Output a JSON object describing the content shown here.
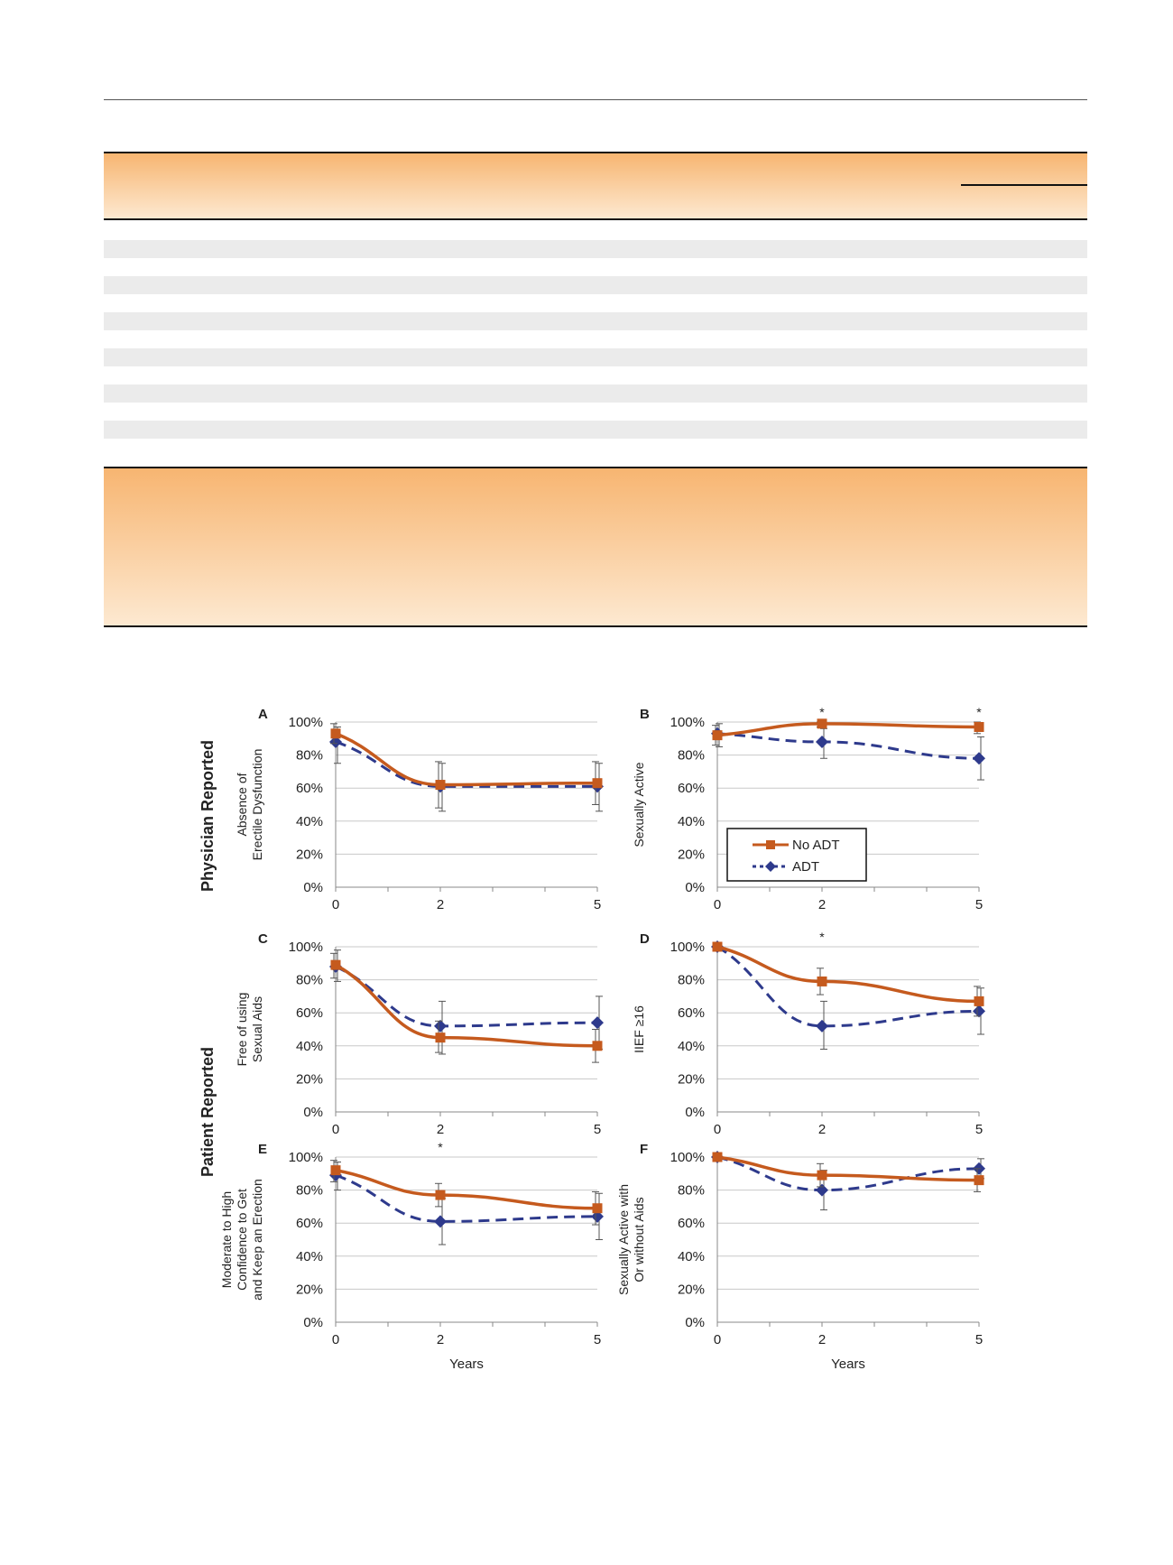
{
  "figure": {
    "row_labels": [
      "Physician Reported",
      "Patient Reported"
    ],
    "x_label": "Years",
    "legend": [
      {
        "name": "No ADT",
        "color": "#c55a1e",
        "style": "solid",
        "marker": "square"
      },
      {
        "name": "ADT",
        "color": "#2e3a8c",
        "style": "dashed",
        "marker": "diamond"
      }
    ]
  },
  "chart_data": [
    {
      "panel": "A",
      "type": "line",
      "ylabel": [
        "Absence of",
        "Erectile Dysfunction"
      ],
      "x": [
        0,
        2,
        5
      ],
      "xlim": [
        0,
        5
      ],
      "ylim": [
        0,
        100
      ],
      "y_ticks": [
        "0%",
        "20%",
        "40%",
        "60%",
        "80%",
        "100%"
      ],
      "x_ticks": [
        "0",
        "2",
        "5"
      ],
      "series": [
        {
          "name": "No ADT",
          "values": [
            93,
            62,
            63
          ],
          "err_low": [
            87,
            48,
            50
          ],
          "err_high": [
            99,
            76,
            76
          ]
        },
        {
          "name": "ADT",
          "values": [
            88,
            61,
            61
          ],
          "err_low": [
            75,
            46,
            46
          ],
          "err_high": [
            97,
            75,
            75
          ]
        }
      ],
      "stars": []
    },
    {
      "panel": "B",
      "type": "line",
      "ylabel": [
        "Sexually Active"
      ],
      "x": [
        0,
        2,
        5
      ],
      "xlim": [
        0,
        5
      ],
      "ylim": [
        0,
        100
      ],
      "y_ticks": [
        "0%",
        "20%",
        "40%",
        "60%",
        "80%",
        "100%"
      ],
      "x_ticks": [
        "0",
        "2",
        "5"
      ],
      "series": [
        {
          "name": "No ADT",
          "values": [
            92,
            99,
            97
          ],
          "err_low": [
            86,
            97,
            93
          ],
          "err_high": [
            98,
            100,
            100
          ]
        },
        {
          "name": "ADT",
          "values": [
            93,
            88,
            78
          ],
          "err_low": [
            85,
            78,
            65
          ],
          "err_high": [
            99,
            96,
            91
          ]
        }
      ],
      "stars": [
        2,
        5
      ],
      "legend": true
    },
    {
      "panel": "C",
      "type": "line",
      "ylabel": [
        "Free of using",
        "Sexual Aids"
      ],
      "x": [
        0,
        2,
        5
      ],
      "xlim": [
        0,
        5
      ],
      "ylim": [
        0,
        100
      ],
      "y_ticks": [
        "0%",
        "20%",
        "40%",
        "60%",
        "80%",
        "100%"
      ],
      "x_ticks": [
        "0",
        "2",
        "5"
      ],
      "series": [
        {
          "name": "No ADT",
          "values": [
            89,
            45,
            40
          ],
          "err_low": [
            81,
            36,
            30
          ],
          "err_high": [
            96,
            55,
            50
          ]
        },
        {
          "name": "ADT",
          "values": [
            88,
            52,
            54
          ],
          "err_low": [
            79,
            35,
            38
          ],
          "err_high": [
            98,
            67,
            70
          ]
        }
      ],
      "stars": []
    },
    {
      "panel": "D",
      "type": "line",
      "ylabel": [
        "IIEF ≥16"
      ],
      "x": [
        0,
        2,
        5
      ],
      "xlim": [
        0,
        5
      ],
      "ylim": [
        0,
        100
      ],
      "y_ticks": [
        "0%",
        "20%",
        "40%",
        "60%",
        "80%",
        "100%"
      ],
      "x_ticks": [
        "0",
        "2",
        "5"
      ],
      "series": [
        {
          "name": "No ADT",
          "values": [
            100,
            79,
            67
          ],
          "err_low": [
            100,
            71,
            58
          ],
          "err_high": [
            100,
            87,
            76
          ]
        },
        {
          "name": "ADT",
          "values": [
            100,
            52,
            61
          ],
          "err_low": [
            100,
            38,
            47
          ],
          "err_high": [
            100,
            67,
            75
          ]
        }
      ],
      "stars": [
        2
      ]
    },
    {
      "panel": "E",
      "type": "line",
      "ylabel": [
        "Moderate to High",
        "Confidence to Get",
        "and Keep an Erection"
      ],
      "x": [
        0,
        2,
        5
      ],
      "xlim": [
        0,
        5
      ],
      "ylim": [
        0,
        100
      ],
      "y_ticks": [
        "0%",
        "20%",
        "40%",
        "60%",
        "80%",
        "100%"
      ],
      "x_ticks": [
        "0",
        "2",
        "5"
      ],
      "series": [
        {
          "name": "No ADT",
          "values": [
            92,
            77,
            69
          ],
          "err_low": [
            85,
            70,
            59
          ],
          "err_high": [
            98,
            84,
            79
          ]
        },
        {
          "name": "ADT",
          "values": [
            89,
            61,
            64
          ],
          "err_low": [
            80,
            47,
            50
          ],
          "err_high": [
            97,
            75,
            78
          ]
        }
      ],
      "stars": [
        2
      ],
      "xlabel": "Years"
    },
    {
      "panel": "F",
      "type": "line",
      "ylabel": [
        "Sexually Active with",
        "Or without Aids"
      ],
      "x": [
        0,
        2,
        5
      ],
      "xlim": [
        0,
        5
      ],
      "ylim": [
        0,
        100
      ],
      "y_ticks": [
        "0%",
        "20%",
        "40%",
        "60%",
        "80%",
        "100%"
      ],
      "x_ticks": [
        "0",
        "2",
        "5"
      ],
      "series": [
        {
          "name": "No ADT",
          "values": [
            100,
            89,
            86
          ],
          "err_low": [
            100,
            82,
            79
          ],
          "err_high": [
            100,
            96,
            93
          ]
        },
        {
          "name": "ADT",
          "values": [
            100,
            80,
            93
          ],
          "err_low": [
            100,
            68,
            87
          ],
          "err_high": [
            100,
            92,
            99
          ]
        }
      ],
      "stars": [],
      "xlabel": "Years"
    }
  ]
}
